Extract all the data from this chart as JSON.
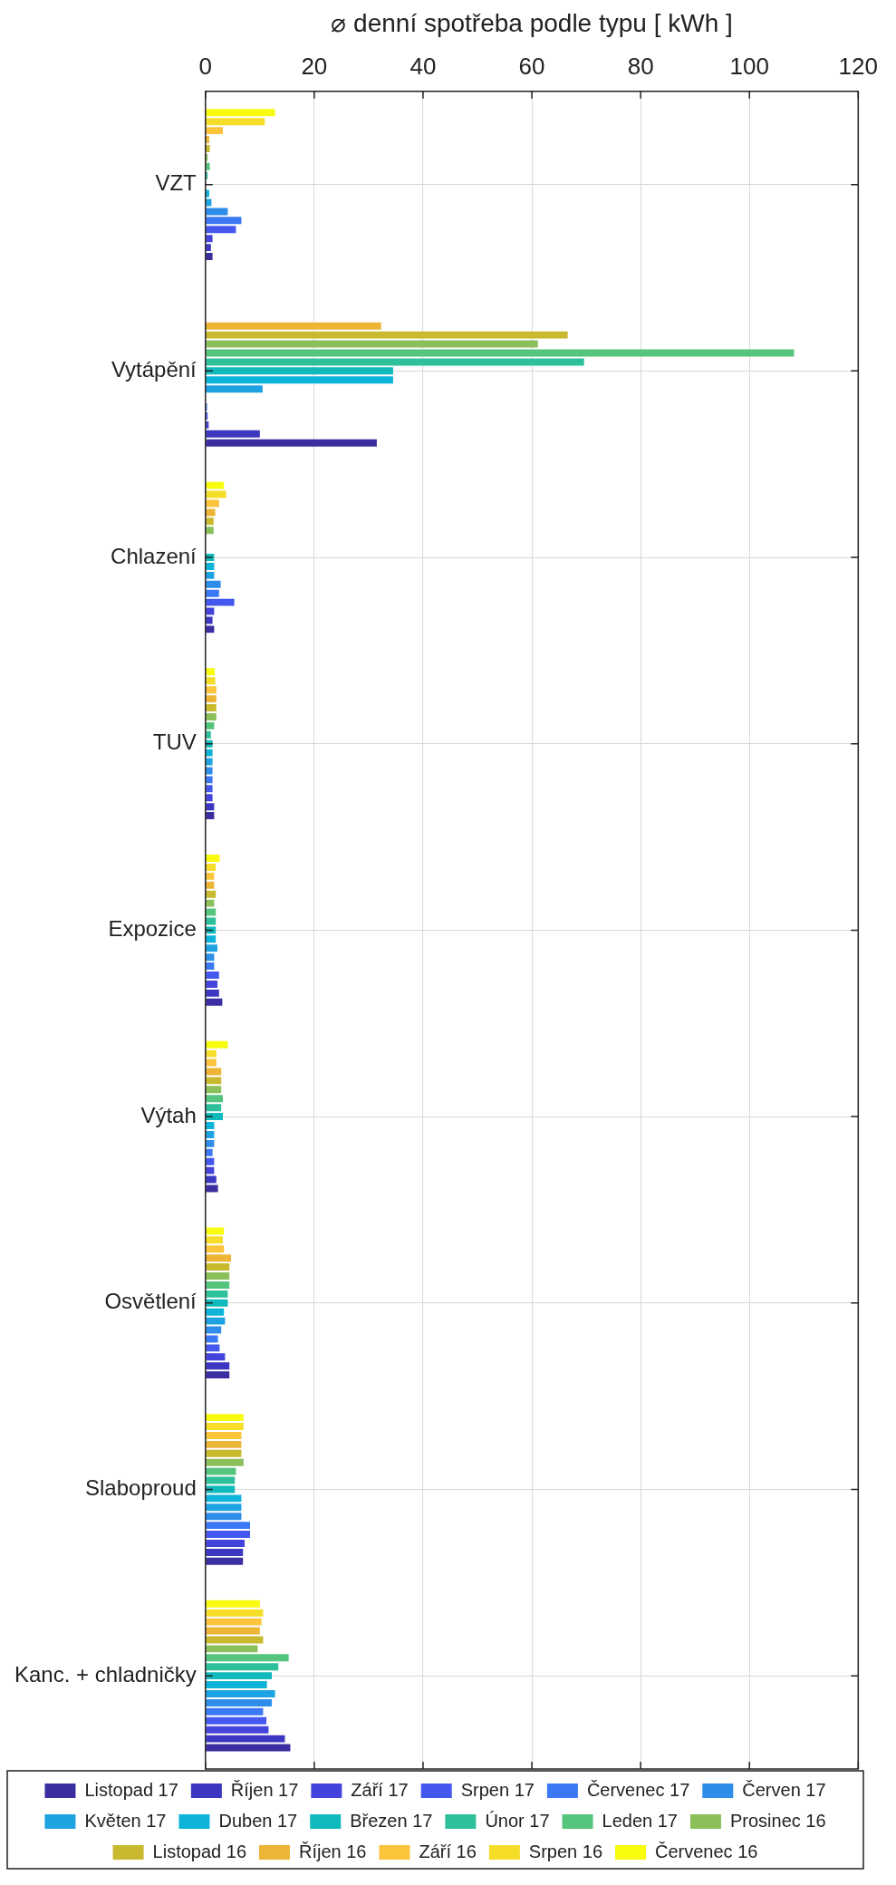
{
  "chart_data": {
    "type": "bar",
    "orientation": "horizontal",
    "xlabel": "⌀ denní spotřeba podle typu [ kWh ]",
    "categories": [
      "VZT",
      "Vytápění",
      "Chlazení",
      "TUV",
      "Expozice",
      "Výtah",
      "Osvětlení",
      "Slaboproud",
      "Kanc. + chladničky"
    ],
    "series": [
      {
        "name": "Červenec 16",
        "color": "#f9fb0e",
        "values": [
          12.8,
          0,
          3.4,
          1.7,
          2.6,
          4.1,
          3.4,
          7.0,
          10.0
        ]
      },
      {
        "name": "Srpen 16",
        "color": "#f5dd28",
        "values": [
          10.9,
          0,
          3.8,
          1.8,
          1.9,
          2.0,
          3.2,
          7.0,
          10.6
        ]
      },
      {
        "name": "Září 16",
        "color": "#fbc43a",
        "values": [
          3.2,
          0,
          2.5,
          2.0,
          1.6,
          2.0,
          3.4,
          6.6,
          10.3
        ]
      },
      {
        "name": "Říjen 16",
        "color": "#ecb536",
        "values": [
          0.7,
          32.3,
          1.8,
          2.0,
          1.6,
          2.9,
          4.7,
          6.6,
          10.0
        ]
      },
      {
        "name": "Listopad 16",
        "color": "#c8b92e",
        "values": [
          0.8,
          66.6,
          1.5,
          2.0,
          1.9,
          2.9,
          4.4,
          6.6,
          10.6
        ]
      },
      {
        "name": "Prosinec 16",
        "color": "#8abf5a",
        "values": [
          0.4,
          61.1,
          1.5,
          2.0,
          1.6,
          2.9,
          4.4,
          7.0,
          9.6
        ]
      },
      {
        "name": "Leden 17",
        "color": "#55c47c",
        "values": [
          0.8,
          108.2,
          0,
          1.6,
          1.9,
          3.2,
          4.4,
          5.6,
          15.3
        ]
      },
      {
        "name": "Únor 17",
        "color": "#2ec09a",
        "values": [
          0.4,
          69.6,
          0,
          1.0,
          1.9,
          2.9,
          4.1,
          5.4,
          13.4
        ]
      },
      {
        "name": "Březen 17",
        "color": "#10b9bb",
        "values": [
          null,
          34.5,
          1.6,
          1.3,
          1.9,
          3.2,
          4.1,
          5.4,
          12.2
        ]
      },
      {
        "name": "Duben 17",
        "color": "#0db3d8",
        "values": [
          0.7,
          34.5,
          1.6,
          1.3,
          1.9,
          1.6,
          3.4,
          6.6,
          11.3
        ]
      },
      {
        "name": "Květen 17",
        "color": "#1ea3e2",
        "values": [
          1.1,
          10.5,
          1.6,
          1.3,
          2.2,
          1.6,
          3.6,
          6.6,
          12.8
        ]
      },
      {
        "name": "Červen 17",
        "color": "#2e8de8",
        "values": [
          4.1,
          0,
          2.8,
          1.3,
          1.6,
          1.6,
          2.9,
          6.6,
          12.2
        ]
      },
      {
        "name": "Červenec 17",
        "color": "#3a78f5",
        "values": [
          6.6,
          0.3,
          2.5,
          1.3,
          1.6,
          1.3,
          2.3,
          8.2,
          10.6
        ]
      },
      {
        "name": "Srpen 17",
        "color": "#4458f0",
        "values": [
          5.6,
          0.4,
          5.3,
          1.3,
          2.5,
          1.6,
          2.6,
          8.2,
          11.2
        ]
      },
      {
        "name": "Září 17",
        "color": "#4444dc",
        "values": [
          1.3,
          0.6,
          1.6,
          1.3,
          2.2,
          1.6,
          3.6,
          7.2,
          11.6
        ]
      },
      {
        "name": "Říjen 17",
        "color": "#3c37c0",
        "values": [
          1.0,
          10.0,
          1.3,
          1.6,
          2.5,
          2.0,
          4.4,
          6.9,
          14.6
        ]
      },
      {
        "name": "Listopad 17",
        "color": "#3a2ea0",
        "values": [
          1.3,
          31.5,
          1.6,
          1.6,
          3.1,
          2.3,
          4.4,
          6.9,
          15.6
        ]
      }
    ],
    "xlim": [
      0,
      120
    ],
    "xticks": [
      0,
      20,
      40,
      60,
      80,
      100,
      120
    ],
    "grid": true,
    "legend": "bottom"
  }
}
